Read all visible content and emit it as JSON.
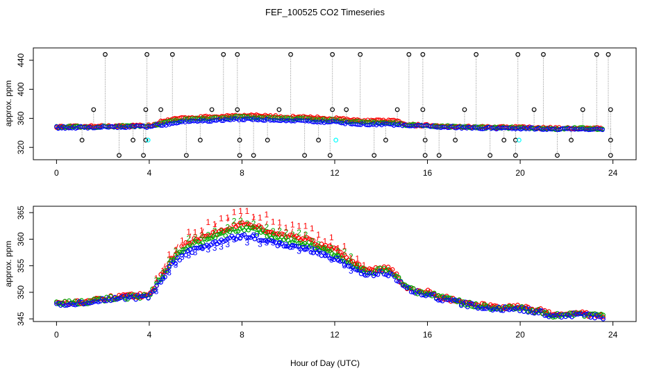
{
  "chart_data": {
    "title": "FEF_100525  CO2 Timeseries",
    "xlabel": "Hour of Day (UTC)",
    "xticks": [
      0,
      4,
      8,
      12,
      16,
      20,
      24
    ],
    "colors": {
      "series1": "#ff0000",
      "series2": "#00aa00",
      "series3": "#0000ff",
      "outlier": "#000000",
      "special": "#00ffff",
      "line": "#8a8a8a"
    },
    "panels": [
      {
        "type": "scatter",
        "ylabel": "approx. ppm",
        "xlim": [
          -1,
          25
        ],
        "ylim": [
          303,
          457
        ],
        "yticks": [
          320,
          360,
          400,
          440
        ],
        "high_outliers": [
          2.1,
          3.9,
          5.0,
          7.2,
          7.8,
          10.1,
          11.9,
          13.1,
          15.2,
          15.8,
          18.1,
          19.9,
          21.0,
          23.3,
          23.8
        ],
        "mid_outliers": [
          {
            "x": 1.6,
            "y": 372
          },
          {
            "x": 3.85,
            "y": 372
          },
          {
            "x": 4.5,
            "y": 372
          },
          {
            "x": 6.7,
            "y": 372
          },
          {
            "x": 7.8,
            "y": 372
          },
          {
            "x": 9.6,
            "y": 372
          },
          {
            "x": 11.9,
            "y": 372
          },
          {
            "x": 12.5,
            "y": 372
          },
          {
            "x": 14.7,
            "y": 372
          },
          {
            "x": 15.8,
            "y": 372
          },
          {
            "x": 17.6,
            "y": 372
          },
          {
            "x": 20.6,
            "y": 372
          },
          {
            "x": 22.7,
            "y": 372
          },
          {
            "x": 23.9,
            "y": 372
          },
          {
            "x": 1.1,
            "y": 330
          },
          {
            "x": 3.3,
            "y": 330
          },
          {
            "x": 3.85,
            "y": 330
          },
          {
            "x": 6.2,
            "y": 330
          },
          {
            "x": 7.9,
            "y": 330
          },
          {
            "x": 9.1,
            "y": 330
          },
          {
            "x": 11.3,
            "y": 330
          },
          {
            "x": 14.2,
            "y": 330
          },
          {
            "x": 15.9,
            "y": 330
          },
          {
            "x": 17.2,
            "y": 330
          },
          {
            "x": 19.3,
            "y": 330
          },
          {
            "x": 19.8,
            "y": 330
          },
          {
            "x": 22.2,
            "y": 330
          },
          {
            "x": 23.9,
            "y": 330
          }
        ],
        "low_outliers": [
          2.7,
          3.75,
          5.6,
          7.9,
          8.5,
          10.7,
          11.8,
          13.7,
          15.9,
          16.5,
          18.7,
          19.8,
          21.6,
          23.9
        ],
        "special_points": [
          {
            "x": 3.95,
            "y": 330
          },
          {
            "x": 12.05,
            "y": 330
          },
          {
            "x": 19.95,
            "y": 330
          }
        ]
      },
      {
        "type": "scatter",
        "ylabel": "approx. ppm",
        "xlim": [
          -1,
          25
        ],
        "ylim": [
          344.5,
          366.2
        ],
        "yticks": [
          345,
          350,
          355,
          360,
          365
        ],
        "series": [
          {
            "name": "1",
            "color": "#ff0000",
            "label": "1"
          },
          {
            "name": "2",
            "color": "#00aa00",
            "label": "2"
          },
          {
            "name": "3",
            "color": "#0000ff",
            "label": "3"
          }
        ],
        "profile_hours": [
          0,
          0.5,
          1,
          1.5,
          2,
          2.5,
          3,
          3.5,
          3.9,
          4.2,
          4.6,
          5.0,
          5.5,
          6.0,
          6.5,
          7.0,
          7.5,
          8.0,
          8.5,
          9.0,
          9.5,
          10.0,
          10.5,
          11.0,
          11.5,
          12.0,
          12.5,
          13.0,
          13.5,
          14.0,
          14.5,
          15.0,
          15.5,
          16.0,
          16.5,
          17.0,
          17.5,
          18.0,
          18.5,
          19.0,
          19.5,
          20.0,
          20.5,
          21.0,
          21.5,
          22.0,
          22.5,
          23.0,
          23.5
        ],
        "profile_values": [
          347.8,
          347.9,
          348.0,
          348.2,
          348.5,
          348.8,
          349.0,
          349.2,
          349.0,
          350.5,
          353.0,
          355.5,
          357.5,
          358.5,
          359.0,
          359.8,
          360.5,
          361.0,
          360.8,
          360.2,
          359.5,
          359.0,
          358.8,
          358.2,
          357.5,
          356.8,
          355.5,
          354.2,
          353.5,
          353.8,
          353.5,
          351.0,
          350.0,
          349.8,
          349.0,
          348.5,
          348.0,
          347.5,
          347.2,
          347.0,
          347.0,
          347.0,
          346.5,
          346.2,
          345.5,
          345.8,
          346.0,
          345.6,
          345.5
        ]
      }
    ]
  }
}
